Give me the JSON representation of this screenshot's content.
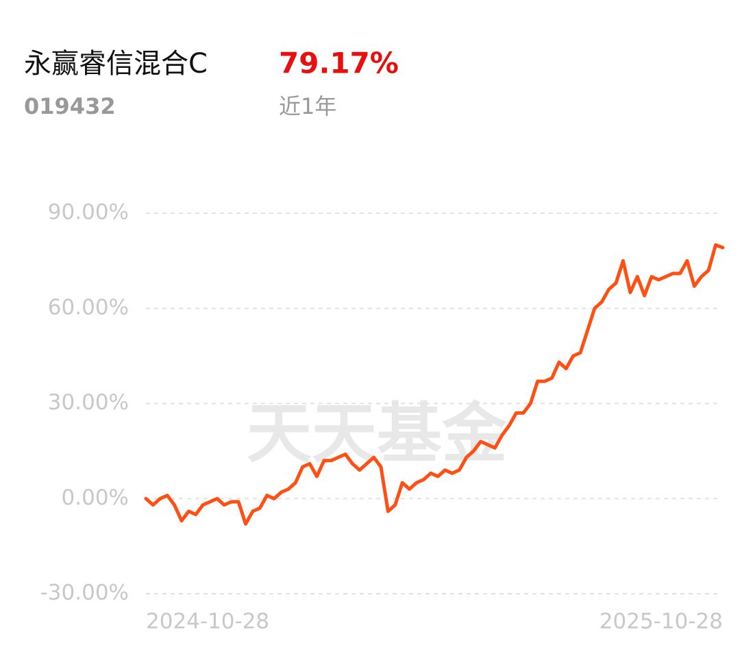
{
  "header": {
    "fund_name": "永赢睿信混合C",
    "fund_code": "019432",
    "return": "79.17%",
    "period": "近1年"
  },
  "chart_data": {
    "type": "line",
    "watermark": "天天基金",
    "categories": [
      "2024-10-28",
      null,
      null,
      null,
      null,
      null,
      null,
      null,
      null,
      null,
      null,
      null,
      null,
      null,
      null,
      null,
      null,
      null,
      null,
      null,
      null,
      null,
      null,
      null,
      null,
      null,
      null,
      null,
      null,
      null,
      null,
      null,
      null,
      null,
      null,
      null,
      null,
      null,
      null,
      null,
      null,
      null,
      null,
      null,
      null,
      null,
      null,
      null,
      null,
      null,
      null,
      null,
      null,
      null,
      null,
      null,
      null,
      null,
      null,
      null,
      null,
      null,
      null,
      null,
      null,
      null,
      null,
      null,
      null,
      null,
      null,
      null,
      null,
      null,
      null,
      null,
      null,
      null,
      null,
      null,
      null,
      "2025-10-28"
    ],
    "series": [
      {
        "color": "#ff4f12",
        "values": [
          0,
          -2,
          0,
          1,
          -2,
          -7,
          -4,
          -5,
          -2,
          -1,
          0,
          -2,
          -1,
          -1,
          -8,
          -4,
          -3,
          1,
          0,
          2,
          3,
          5,
          10,
          11,
          7,
          12,
          12,
          13,
          14,
          11,
          9,
          11,
          13,
          10,
          -4,
          -2,
          5,
          3,
          5,
          6,
          8,
          7,
          9,
          8,
          9,
          13,
          15,
          18,
          17,
          16,
          20,
          23,
          27,
          27,
          30,
          37,
          37,
          38,
          43,
          41,
          45,
          46,
          53,
          60,
          62,
          66,
          68,
          75,
          65,
          70,
          64,
          70,
          69,
          70,
          71,
          71,
          75,
          67,
          70,
          72,
          80,
          79.17
        ]
      }
    ],
    "ylim": [
      -30,
      90
    ],
    "yticks": [
      {
        "value": -30,
        "label": "-30.00%"
      },
      {
        "value": 0,
        "label": "0.00%"
      },
      {
        "value": 30,
        "label": "30.00%"
      },
      {
        "value": 60,
        "label": "60.00%"
      },
      {
        "value": 90,
        "label": "90.00%"
      }
    ],
    "grid": true
  }
}
